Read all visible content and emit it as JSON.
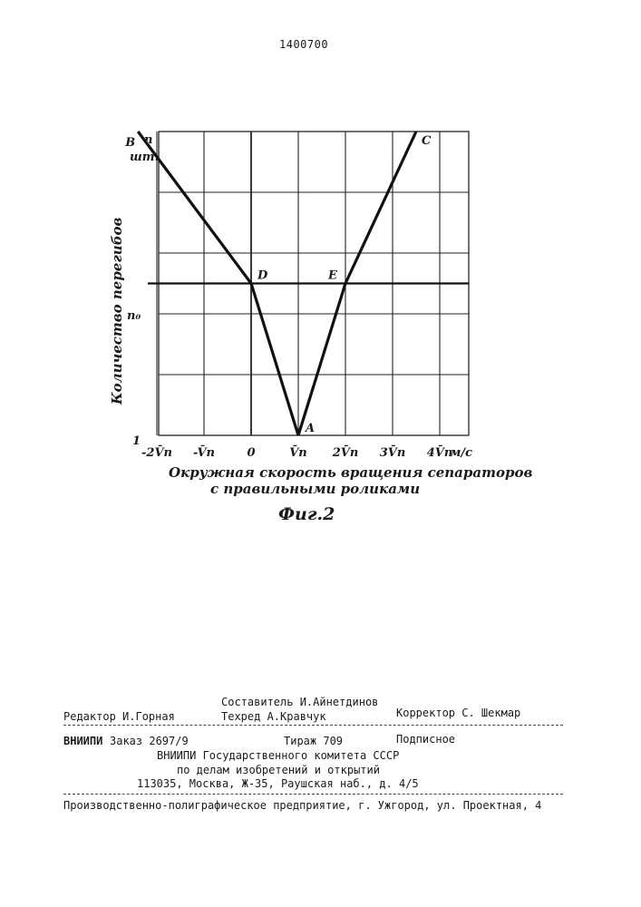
{
  "patent_number": "1400700",
  "chart_data": {
    "type": "line",
    "title": "",
    "xlabel": "Окружная скорость вращения сепараторов с правильными роликами",
    "xlabel_line1": "Окружная скорость вращения сепараторов",
    "xlabel_line2": "с правильными роликами",
    "ylabel": "Количество перегибов",
    "x_unit": "м/с",
    "y_unit_top": "n",
    "y_unit_bottom": "шт.",
    "x_tick_labels": [
      "-2V̄n",
      "-V̄n",
      "0",
      "V̄n",
      "2V̄n",
      "3V̄n",
      "4V̄n"
    ],
    "x_ticks": [
      -2,
      -1,
      0,
      1,
      2,
      3,
      4
    ],
    "y_tick_labels": {
      "bottom": "1",
      "middle": "n₀",
      "top": "n"
    },
    "xlim": [
      -2.7,
      4.7
    ],
    "ylim": [
      0,
      1
    ],
    "series": [
      {
        "name": "",
        "x": [
          -2.4,
          0,
          1
        ],
        "y": [
          1,
          0.5,
          0
        ]
      },
      {
        "name": "",
        "x": [
          1,
          2,
          3.5
        ],
        "y": [
          0,
          0.5,
          1
        ]
      }
    ],
    "points": [
      {
        "label": "A",
        "x": 1,
        "y": 0
      },
      {
        "label": "B",
        "x": -2.4,
        "y": 1
      },
      {
        "label": "C",
        "x": 3.5,
        "y": 1
      },
      {
        "label": "D",
        "x": 0,
        "y": 0.5
      },
      {
        "label": "E",
        "x": 2,
        "y": 0.5
      }
    ],
    "grid": true
  },
  "figure_label": "Фиг.2",
  "colophon": {
    "editor": "Редактор И.Горная",
    "compiler": "Составитель И.Айнетдинов",
    "tech_editor": "Техред А.Кравчук",
    "corrector": "Корректор С. Шекмар",
    "vniipi_tag": "ВНИИПИ",
    "order": "Заказ 2697/9",
    "circulation": "Тираж 709",
    "subscription": "Подписное",
    "org_line1": "ВНИИПИ Государственного комитета СССР",
    "org_line2": "по делам изобретений и открытий",
    "address": "113035, Москва, Ж-35, Раушская наб., д. 4/5",
    "printer": "Производственно-полиграфическое предприятие, г. Ужгород, ул. Проектная, 4"
  }
}
